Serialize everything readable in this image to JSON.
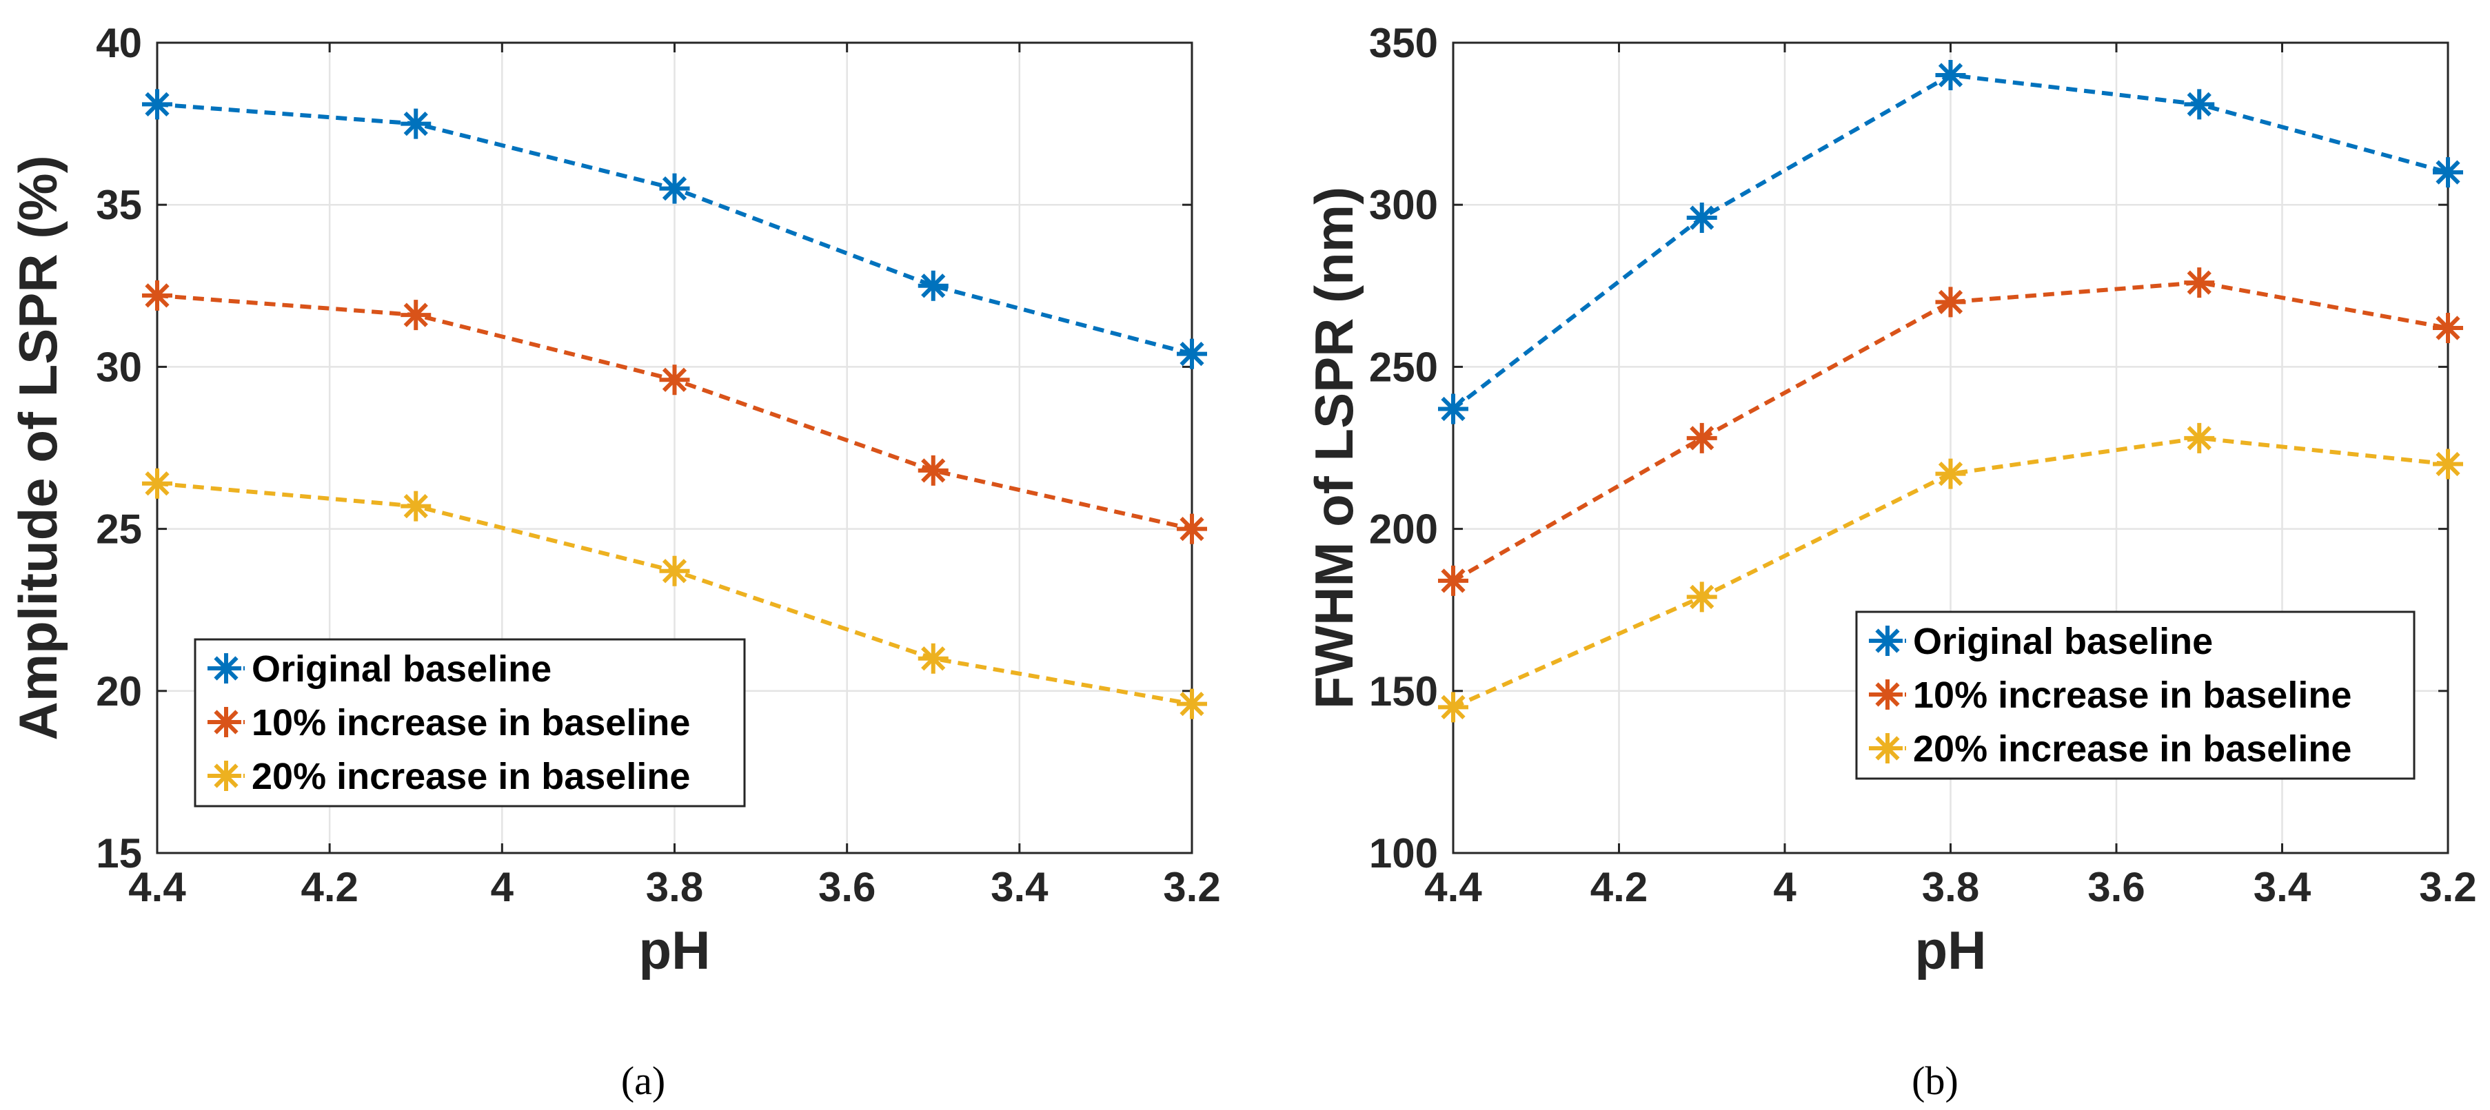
{
  "chart_data": [
    {
      "type": "line",
      "caption": "(a)",
      "xlabel": "pH",
      "ylabel": "Amplitude of LSPR (%)",
      "x": [
        4.4,
        4.1,
        3.8,
        3.5,
        3.2
      ],
      "xlim": [
        4.4,
        3.2
      ],
      "ylim": [
        15,
        40
      ],
      "xticks": [
        4.4,
        4.2,
        4,
        3.8,
        3.6,
        3.4,
        3.2
      ],
      "xtick_labels": [
        "4.4",
        "4.2",
        "4",
        "3.8",
        "3.6",
        "3.4",
        "3.2"
      ],
      "yticks": [
        15,
        20,
        25,
        30,
        35,
        40
      ],
      "ytick_labels": [
        "15",
        "20",
        "25",
        "30",
        "35",
        "40"
      ],
      "grid": true,
      "legend_location": "bottom-left",
      "series": [
        {
          "name": "Original baseline",
          "color": "#0072BD",
          "values": [
            38.1,
            37.5,
            35.5,
            32.5,
            30.4
          ]
        },
        {
          "name": "10% increase in baseline",
          "color": "#D95319",
          "values": [
            32.2,
            31.6,
            29.6,
            26.8,
            25.0
          ]
        },
        {
          "name": "20% increase in baseline",
          "color": "#EDB120",
          "values": [
            26.4,
            25.7,
            23.7,
            21.0,
            19.6
          ]
        }
      ]
    },
    {
      "type": "line",
      "caption": "(b)",
      "xlabel": "pH",
      "ylabel": "FWHM of LSPR (nm)",
      "x": [
        4.4,
        4.1,
        3.8,
        3.5,
        3.2
      ],
      "xlim": [
        4.4,
        3.2
      ],
      "ylim": [
        100,
        350
      ],
      "xticks": [
        4.4,
        4.2,
        4,
        3.8,
        3.6,
        3.4,
        3.2
      ],
      "xtick_labels": [
        "4.4",
        "4.2",
        "4",
        "3.8",
        "3.6",
        "3.4",
        "3.2"
      ],
      "yticks": [
        100,
        150,
        200,
        250,
        300,
        350
      ],
      "ytick_labels": [
        "100",
        "150",
        "200",
        "250",
        "300",
        "350"
      ],
      "grid": true,
      "legend_location": "center-right",
      "series": [
        {
          "name": "Original baseline",
          "color": "#0072BD",
          "values": [
            237,
            296,
            340,
            331,
            310
          ]
        },
        {
          "name": "10% increase in baseline",
          "color": "#D95319",
          "values": [
            184,
            228,
            270,
            276,
            262
          ]
        },
        {
          "name": "20% increase in baseline",
          "color": "#EDB120",
          "values": [
            145,
            179,
            217,
            228,
            220
          ]
        }
      ]
    }
  ]
}
